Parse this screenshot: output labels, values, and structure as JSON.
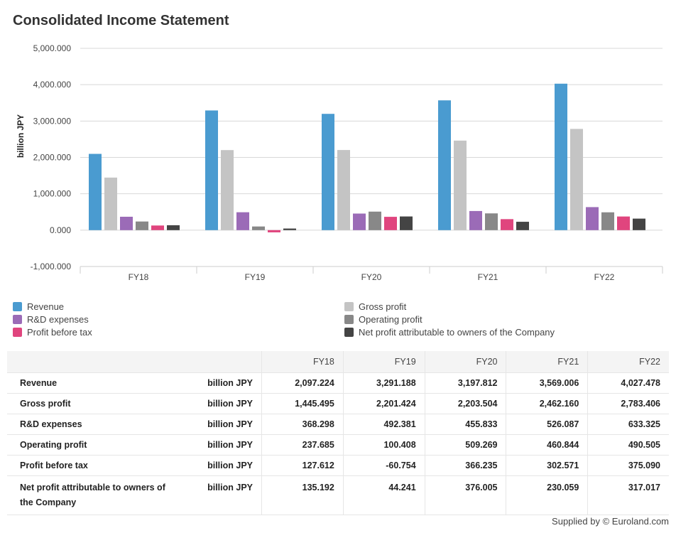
{
  "title": "Consolidated Income Statement",
  "chart_data": {
    "type": "bar",
    "title": "Consolidated Income Statement",
    "ylabel": "billion JPY",
    "xlabel": "",
    "ylim": [
      -1000,
      5000
    ],
    "yticks": [
      5000,
      4000,
      3000,
      2000,
      1000,
      0,
      -1000
    ],
    "ytick_labels": [
      "5,000.000",
      "4,000.000",
      "3,000.000",
      "2,000.000",
      "1,000.000",
      "0.000",
      "-1,000.000"
    ],
    "categories": [
      "FY18",
      "FY19",
      "FY20",
      "FY21",
      "FY22"
    ],
    "series": [
      {
        "name": "Revenue",
        "color": "#4a9bd0",
        "values": [
          2097.224,
          3291.188,
          3197.812,
          3569.006,
          4027.478
        ]
      },
      {
        "name": "Gross profit",
        "color": "#c4c4c4",
        "values": [
          1445.495,
          2201.424,
          2203.504,
          2462.16,
          2783.406
        ]
      },
      {
        "name": "R&D expenses",
        "color": "#9b6bb7",
        "values": [
          368.298,
          492.381,
          455.833,
          526.087,
          633.325
        ]
      },
      {
        "name": "Operating profit",
        "color": "#888888",
        "values": [
          237.685,
          100.408,
          509.269,
          460.844,
          490.505
        ]
      },
      {
        "name": "Profit before tax",
        "color": "#e0457e",
        "values": [
          127.612,
          -60.754,
          366.235,
          302.571,
          375.09
        ]
      },
      {
        "name": "Net profit attributable to owners of the Company",
        "color": "#444444",
        "values": [
          135.192,
          44.241,
          376.005,
          230.059,
          317.017
        ]
      }
    ],
    "grid": true,
    "legend": "bottom"
  },
  "table": {
    "headers": [
      "FY18",
      "FY19",
      "FY20",
      "FY21",
      "FY22"
    ],
    "rows": [
      {
        "label": "Revenue",
        "unit": "billion JPY",
        "values": [
          "2,097.224",
          "3,291.188",
          "3,197.812",
          "3,569.006",
          "4,027.478"
        ]
      },
      {
        "label": "Gross profit",
        "unit": "billion JPY",
        "values": [
          "1,445.495",
          "2,201.424",
          "2,203.504",
          "2,462.160",
          "2,783.406"
        ]
      },
      {
        "label": "R&D expenses",
        "unit": "billion JPY",
        "values": [
          "368.298",
          "492.381",
          "455.833",
          "526.087",
          "633.325"
        ]
      },
      {
        "label": "Operating profit",
        "unit": "billion JPY",
        "values": [
          "237.685",
          "100.408",
          "509.269",
          "460.844",
          "490.505"
        ]
      },
      {
        "label": "Profit before tax",
        "unit": "billion JPY",
        "values": [
          "127.612",
          "-60.754",
          "366.235",
          "302.571",
          "375.090"
        ]
      },
      {
        "label": "Net profit attributable to owners of the Company",
        "unit": "billion JPY",
        "values": [
          "135.192",
          "44.241",
          "376.005",
          "230.059",
          "317.017"
        ]
      }
    ]
  },
  "footer": "Supplied by © Euroland.com"
}
